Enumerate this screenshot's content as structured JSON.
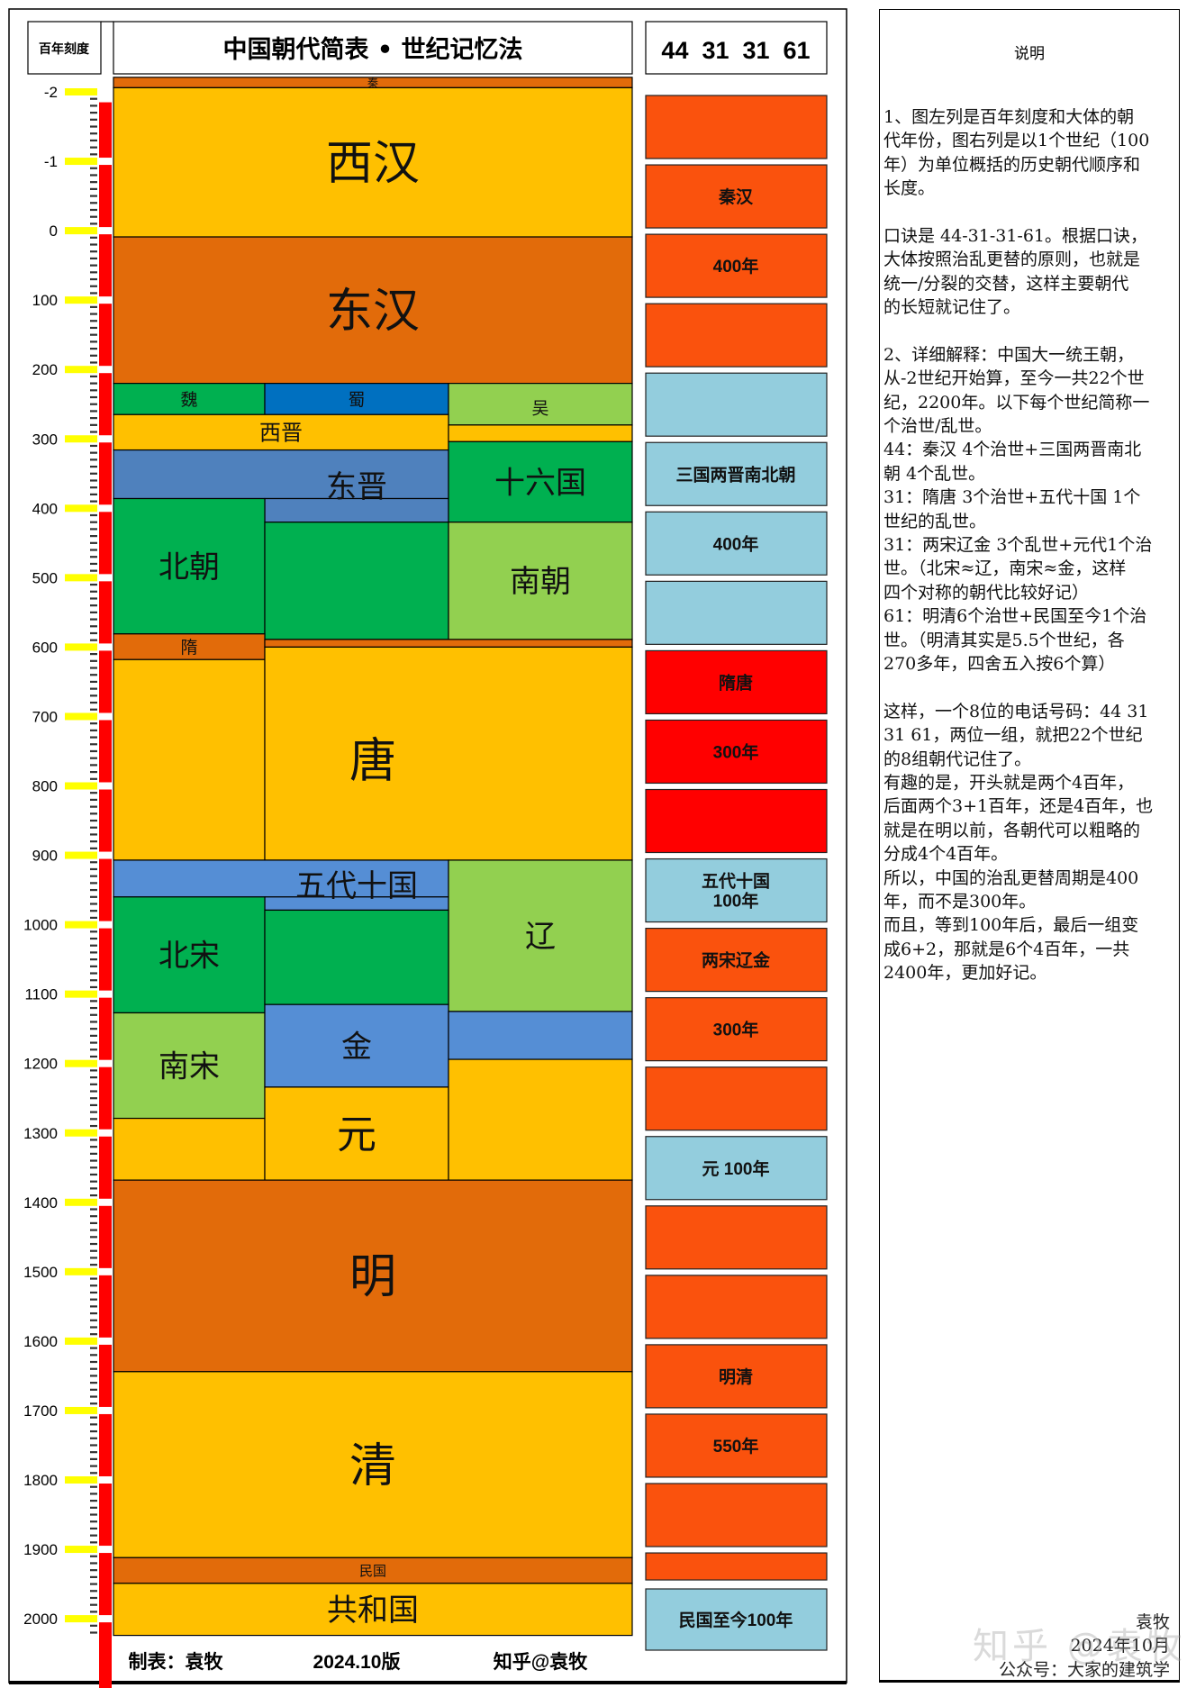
{
  "header": {
    "scale_label": "百年刻度",
    "title": "中国朝代简表 • 世纪记忆法",
    "mnemonic": "44  31  31  61"
  },
  "scale": {
    "labels": [
      "-2",
      "-1",
      "0",
      "100",
      "200",
      "300",
      "400",
      "500",
      "600",
      "700",
      "800",
      "900",
      "1000",
      "1100",
      "1200",
      "1300",
      "1400",
      "1500",
      "1600",
      "1700",
      "1800",
      "1900",
      "2000"
    ]
  },
  "colors": {
    "yellow": "#ffc000",
    "dark_orange": "#e26b0a",
    "green": "#00b050",
    "blue": "#0070c0",
    "light_green": "#92d050",
    "steel_blue": "#4f81bd",
    "mid_blue": "#558ed5",
    "century_orange": "#fa520d",
    "century_light_blue": "#93cddd",
    "century_red": "#ff0000",
    "scale_red": "#ff0000",
    "scale_yellow": "#ffff00"
  },
  "dynasties": [
    {
      "name": "秦",
      "color": "dark_orange",
      "pieces": [
        {
          "cols": "abc",
          "from": -221,
          "to": -206
        }
      ]
    },
    {
      "name": "西汉",
      "color": "yellow",
      "pieces": [
        {
          "cols": "abc",
          "from": -206,
          "to": 9
        }
      ]
    },
    {
      "name": "东汉",
      "color": "dark_orange",
      "pieces": [
        {
          "cols": "abc",
          "from": 9,
          "to": 220
        }
      ]
    },
    {
      "name": "魏",
      "color": "green",
      "pieces": [
        {
          "cols": "a",
          "from": 220,
          "to": 265
        }
      ]
    },
    {
      "name": "蜀",
      "color": "blue",
      "pieces": [
        {
          "cols": "b",
          "from": 220,
          "to": 265
        }
      ]
    },
    {
      "name": "吴",
      "color": "light_green",
      "pieces": [
        {
          "cols": "c",
          "from": 220,
          "to": 280
        }
      ]
    },
    {
      "name": "西晋",
      "color": "yellow",
      "pieces": [
        {
          "cols": "ab",
          "from": 265,
          "to": 316
        },
        {
          "cols": "c",
          "from": 280,
          "to": 304
        }
      ]
    },
    {
      "name": "东晋",
      "color": "steel_blue",
      "pieces": [
        {
          "cols": "ab",
          "from": 316,
          "to": 386
        },
        {
          "cols": "b",
          "from": 386,
          "to": 420
        }
      ]
    },
    {
      "name": "十六国",
      "color": "green",
      "pieces": [
        {
          "cols": "c",
          "from": 304,
          "to": 420
        }
      ]
    },
    {
      "name": "北朝",
      "color": "green",
      "pieces": [
        {
          "cols": "a",
          "from": 386,
          "to": 581
        },
        {
          "cols": "b",
          "from": 420,
          "to": 589
        }
      ]
    },
    {
      "name": "南朝",
      "color": "light_green",
      "pieces": [
        {
          "cols": "c",
          "from": 420,
          "to": 589
        }
      ]
    },
    {
      "name": "隋",
      "color": "dark_orange",
      "pieces": [
        {
          "cols": "a",
          "from": 581,
          "to": 618
        },
        {
          "cols": "bc",
          "from": 589,
          "to": 600
        }
      ]
    },
    {
      "name": "唐",
      "color": "yellow",
      "pieces": [
        {
          "cols": "a",
          "from": 618,
          "to": 907
        },
        {
          "cols": "bc",
          "from": 600,
          "to": 907
        }
      ]
    },
    {
      "name": "五代十国",
      "color": "mid_blue",
      "pieces": [
        {
          "cols": "ab",
          "from": 907,
          "to": 960
        },
        {
          "cols": "b",
          "from": 960,
          "to": 979
        }
      ]
    },
    {
      "name": "辽",
      "color": "light_green",
      "pieces": [
        {
          "cols": "c",
          "from": 907,
          "to": 1125
        }
      ]
    },
    {
      "name": "北宋",
      "color": "green",
      "pieces": [
        {
          "cols": "a",
          "from": 960,
          "to": 1127
        },
        {
          "cols": "b",
          "from": 979,
          "to": 1115
        }
      ]
    },
    {
      "name": "南宋",
      "color": "light_green",
      "pieces": [
        {
          "cols": "a",
          "from": 1127,
          "to": 1279
        }
      ]
    },
    {
      "name": "金",
      "color": "mid_blue",
      "pieces": [
        {
          "cols": "b",
          "from": 1115,
          "to": 1234
        },
        {
          "cols": "c",
          "from": 1125,
          "to": 1194
        }
      ]
    },
    {
      "name": "元",
      "color": "yellow",
      "pieces": [
        {
          "cols": "a",
          "from": 1279,
          "to": 1368
        },
        {
          "cols": "b",
          "from": 1234,
          "to": 1368
        },
        {
          "cols": "c",
          "from": 1194,
          "to": 1368
        }
      ]
    },
    {
      "name": "明",
      "color": "dark_orange",
      "pieces": [
        {
          "cols": "abc",
          "from": 1368,
          "to": 1644
        }
      ]
    },
    {
      "name": "清",
      "color": "yellow",
      "pieces": [
        {
          "cols": "abc",
          "from": 1644,
          "to": 1912
        }
      ]
    },
    {
      "name": "民国",
      "color": "dark_orange",
      "pieces": [
        {
          "cols": "abc",
          "from": 1912,
          "to": 1949
        }
      ]
    },
    {
      "name": "共和国",
      "color": "yellow",
      "pieces": [
        {
          "cols": "abc",
          "from": 1949,
          "to": 2024
        }
      ]
    }
  ],
  "centuries": [
    {
      "label": "",
      "color": "century_orange"
    },
    {
      "label": "秦汉",
      "color": "century_orange"
    },
    {
      "label": "400年",
      "color": "century_orange"
    },
    {
      "label": "",
      "color": "century_orange"
    },
    {
      "label": "",
      "color": "century_light_blue"
    },
    {
      "label": "三国两晋南北朝",
      "color": "century_light_blue"
    },
    {
      "label": "400年",
      "color": "century_light_blue"
    },
    {
      "label": "",
      "color": "century_light_blue"
    },
    {
      "label": "隋唐",
      "color": "century_red"
    },
    {
      "label": "300年",
      "color": "century_red"
    },
    {
      "label": "",
      "color": "century_red"
    },
    {
      "label": "五代十国\n100年",
      "color": "century_light_blue"
    },
    {
      "label": "两宋辽金",
      "color": "century_orange"
    },
    {
      "label": "300年",
      "color": "century_orange"
    },
    {
      "label": "",
      "color": "century_orange"
    },
    {
      "label": "元 100年",
      "color": "century_light_blue"
    },
    {
      "label": "",
      "color": "century_orange"
    },
    {
      "label": "",
      "color": "century_orange"
    },
    {
      "label": "明清",
      "color": "century_orange"
    },
    {
      "label": "550年",
      "color": "century_orange"
    },
    {
      "label": "",
      "color": "century_orange"
    },
    {
      "label": "",
      "color": "century_orange"
    },
    {
      "label": "民国至今100年",
      "color": "century_light_blue"
    }
  ],
  "footer": {
    "author": "制表：袁牧",
    "version": "2024.10版",
    "zhihu": "知乎@袁牧"
  },
  "explanation": {
    "title": "说明",
    "lines": [
      "1、图左列是百年刻度和大体的朝",
      "代年份，图右列是以1个世纪（100",
      "年）为单位概括的历史朝代顺序和",
      "长度。",
      "",
      "口诀是 44-31-31-61。根据口诀，",
      "大体按照治乱更替的原则，也就是",
      "统一/分裂的交替，这样主要朝代",
      "的长短就记住了。",
      "",
      "2、详细解释：中国大一统王朝，",
      "从-2世纪开始算，至今一共22个世",
      "纪，2200年。以下每个世纪简称一",
      "个治世/乱世。",
      "44：秦汉 4个治世+三国两晋南北",
      "朝 4个乱世。",
      "31：隋唐 3个治世+五代十国 1个",
      "世纪的乱世。",
      "31：两宋辽金 3个乱世+元代1个治",
      "世。（北宋≈辽，南宋≈金，这样",
      "四个对称的朝代比较好记）",
      "61：明清6个治世+民国至今1个治",
      "世。（明清其实是5.5个世纪，各",
      "270多年，四舍五入按6个算）",
      "",
      "这样，一个8位的电话号码：44 31",
      "31 61，两位一组，就把22个世纪",
      "的8组朝代记住了。",
      "有趣的是，开头就是两个4百年，",
      "后面两个3+1百年，还是4百年，也",
      "就是在明以前，各朝代可以粗略的",
      "分成4个4百年。",
      "所以，中国的治乱更替周期是400",
      "年，而不是300年。",
      "而且，等到100年后，最后一组变",
      "成6+2，那就是6个4百年，一共",
      "2400年，更加好记。"
    ],
    "signature_name": "袁牧",
    "signature_date": "2024年10月",
    "signature_account": "公众号：大家的建筑学"
  },
  "watermark": "知乎 @袁牧"
}
